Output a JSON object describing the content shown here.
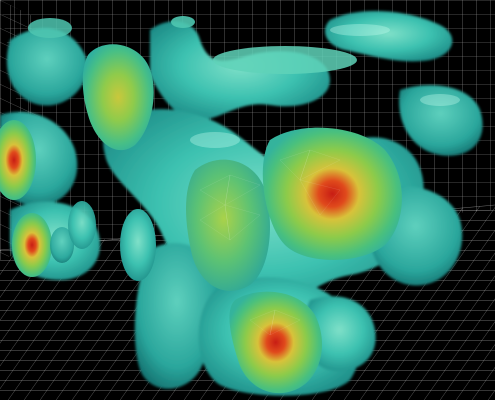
{
  "visualization": {
    "background_color": "#000000",
    "grid_color": "#d8d8d8",
    "surface_colors": {
      "outer": "#2fb7a6",
      "mid": "#44c48a",
      "inner": "#b8d23a",
      "core": "#d42a1a"
    },
    "tick_labels": [
      "",
      ""
    ]
  }
}
